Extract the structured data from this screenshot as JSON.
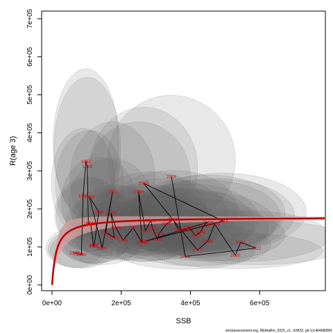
{
  "chart_data": {
    "type": "scatter",
    "title": "",
    "xlabel": "SSB",
    "ylabel": "R(age 3)",
    "xlim": [
      -30000,
      790000
    ],
    "ylim": [
      -15000,
      720000
    ],
    "x_ticks": [
      {
        "value": 0,
        "label": "0e+00"
      },
      {
        "value": 200000,
        "label": "2e+05"
      },
      {
        "value": 400000,
        "label": "4e+05"
      },
      {
        "value": 600000,
        "label": "6e+05"
      }
    ],
    "y_ticks": [
      {
        "value": 0,
        "label": "0e+00"
      },
      {
        "value": 100000,
        "label": "1e+05"
      },
      {
        "value": 200000,
        "label": "2e+05"
      },
      {
        "value": 300000,
        "label": "3e+05"
      },
      {
        "value": 400000,
        "label": "4e+05"
      },
      {
        "value": 500000,
        "label": "5e+05"
      },
      {
        "value": 600000,
        "label": "6e+05"
      },
      {
        "value": 700000,
        "label": "7e+05"
      }
    ],
    "stock_recruit_curve": {
      "model": "Beverton-Holt",
      "asymptote": 178000,
      "half_saturation": 13000,
      "color": "#b30000",
      "ci_color": "#d9a0a0"
    },
    "points": [
      {
        "year": "1978",
        "x": 65000,
        "y": 85000
      },
      {
        "year": "1979",
        "x": 75000,
        "y": 82000
      },
      {
        "year": "1980",
        "x": 85000,
        "y": 80000
      },
      {
        "year": "1981",
        "x": 90000,
        "y": 235000
      },
      {
        "year": "1982",
        "x": 98000,
        "y": 325000
      },
      {
        "year": "1983",
        "x": 102000,
        "y": 312000
      },
      {
        "year": "1984",
        "x": 105000,
        "y": 162000
      },
      {
        "year": "1985",
        "x": 112000,
        "y": 160000
      },
      {
        "year": "1986",
        "x": 120000,
        "y": 102000
      },
      {
        "year": "1987",
        "x": 122000,
        "y": 105000
      },
      {
        "year": "1988",
        "x": 135000,
        "y": 192000
      },
      {
        "year": "1989",
        "x": 108000,
        "y": 232000
      },
      {
        "year": "1990",
        "x": 145000,
        "y": 97000
      },
      {
        "year": "1991",
        "x": 175000,
        "y": 245000
      },
      {
        "year": "1992",
        "x": 155000,
        "y": 138000
      },
      {
        "year": "1993",
        "x": 180000,
        "y": 125000
      },
      {
        "year": "1994",
        "x": 170000,
        "y": 190000
      },
      {
        "year": "1995",
        "x": 185000,
        "y": 150000
      },
      {
        "year": "1996",
        "x": 205000,
        "y": 118000
      },
      {
        "year": "1997",
        "x": 235000,
        "y": 150000
      },
      {
        "year": "1998",
        "x": 260000,
        "y": 112000
      },
      {
        "year": "1999",
        "x": 250000,
        "y": 245000
      },
      {
        "year": "2000",
        "x": 270000,
        "y": 142000
      },
      {
        "year": "2001",
        "x": 285000,
        "y": 170000
      },
      {
        "year": "2002",
        "x": 290000,
        "y": 150000
      },
      {
        "year": "2003",
        "x": 305000,
        "y": 120000
      },
      {
        "year": "2004",
        "x": 310000,
        "y": 135000
      },
      {
        "year": "2005",
        "x": 330000,
        "y": 160000
      },
      {
        "year": "2006",
        "x": 350000,
        "y": 172000
      },
      {
        "year": "2007",
        "x": 365000,
        "y": 145000
      },
      {
        "year": "2008",
        "x": 385000,
        "y": 145000
      },
      {
        "year": "2009",
        "x": 395000,
        "y": 152000
      },
      {
        "year": "2010",
        "x": 415000,
        "y": 130000
      },
      {
        "year": "2011",
        "x": 430000,
        "y": 140000
      },
      {
        "year": "2012",
        "x": 440000,
        "y": 158000
      },
      {
        "year": "2013",
        "x": 450000,
        "y": 165000
      },
      {
        "year": "2014",
        "x": 270000,
        "y": 115000
      },
      {
        "year": "2015",
        "x": 495000,
        "y": 168000
      },
      {
        "year": "2016",
        "x": 265000,
        "y": 267000
      },
      {
        "year": "2017",
        "x": 420000,
        "y": 92000
      },
      {
        "year": "2018",
        "x": 450000,
        "y": 115000
      },
      {
        "year": "2019",
        "x": 470000,
        "y": 160000
      },
      {
        "year": "2020",
        "x": 530000,
        "y": 78000
      },
      {
        "year": "2021",
        "x": 545000,
        "y": 112000
      },
      {
        "year": "2022",
        "x": 590000,
        "y": 97000
      },
      {
        "year": "2023",
        "x": 385000,
        "y": 75000
      },
      {
        "year": "2024",
        "x": 345000,
        "y": 285000
      }
    ]
  },
  "footer": "stockassessment.org, NEAtailhe_2025_v1, r16832, git:1cc464b8086f"
}
